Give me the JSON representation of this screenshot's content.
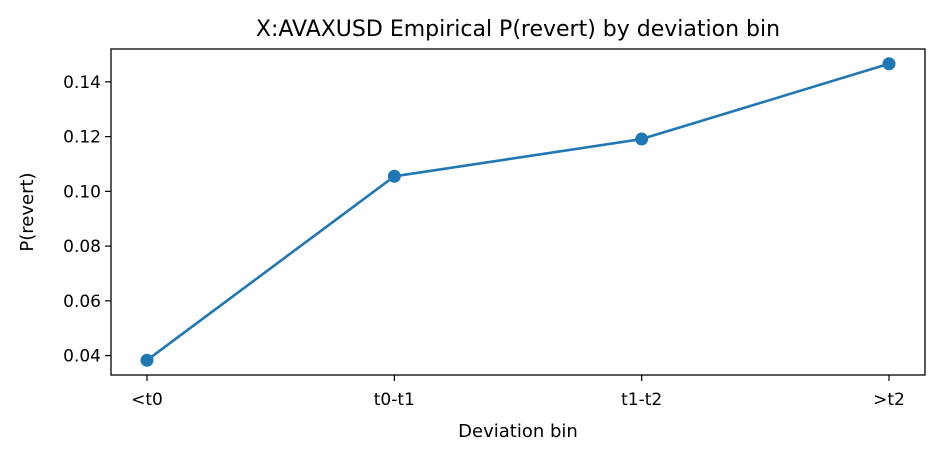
{
  "chart_data": {
    "type": "line",
    "title": "X:AVAXUSD Empirical P(revert) by deviation bin",
    "xlabel": "Deviation bin",
    "ylabel": "P(revert)",
    "categories": [
      "<t0",
      "t0-t1",
      "t1-t2",
      ">t2"
    ],
    "series": [
      {
        "name": "",
        "values": [
          0.0383,
          0.1055,
          0.1191,
          0.1466
        ],
        "color": "#1f77b4",
        "marker": "circle"
      }
    ],
    "ylim": [
      0.0329,
      0.152
    ],
    "yticks": [
      0.04,
      0.06,
      0.08,
      0.1,
      0.12,
      0.14
    ],
    "ytick_labels": [
      "0.04",
      "0.06",
      "0.08",
      "0.10",
      "0.12",
      "0.14"
    ],
    "grid": false,
    "legend": "none"
  }
}
